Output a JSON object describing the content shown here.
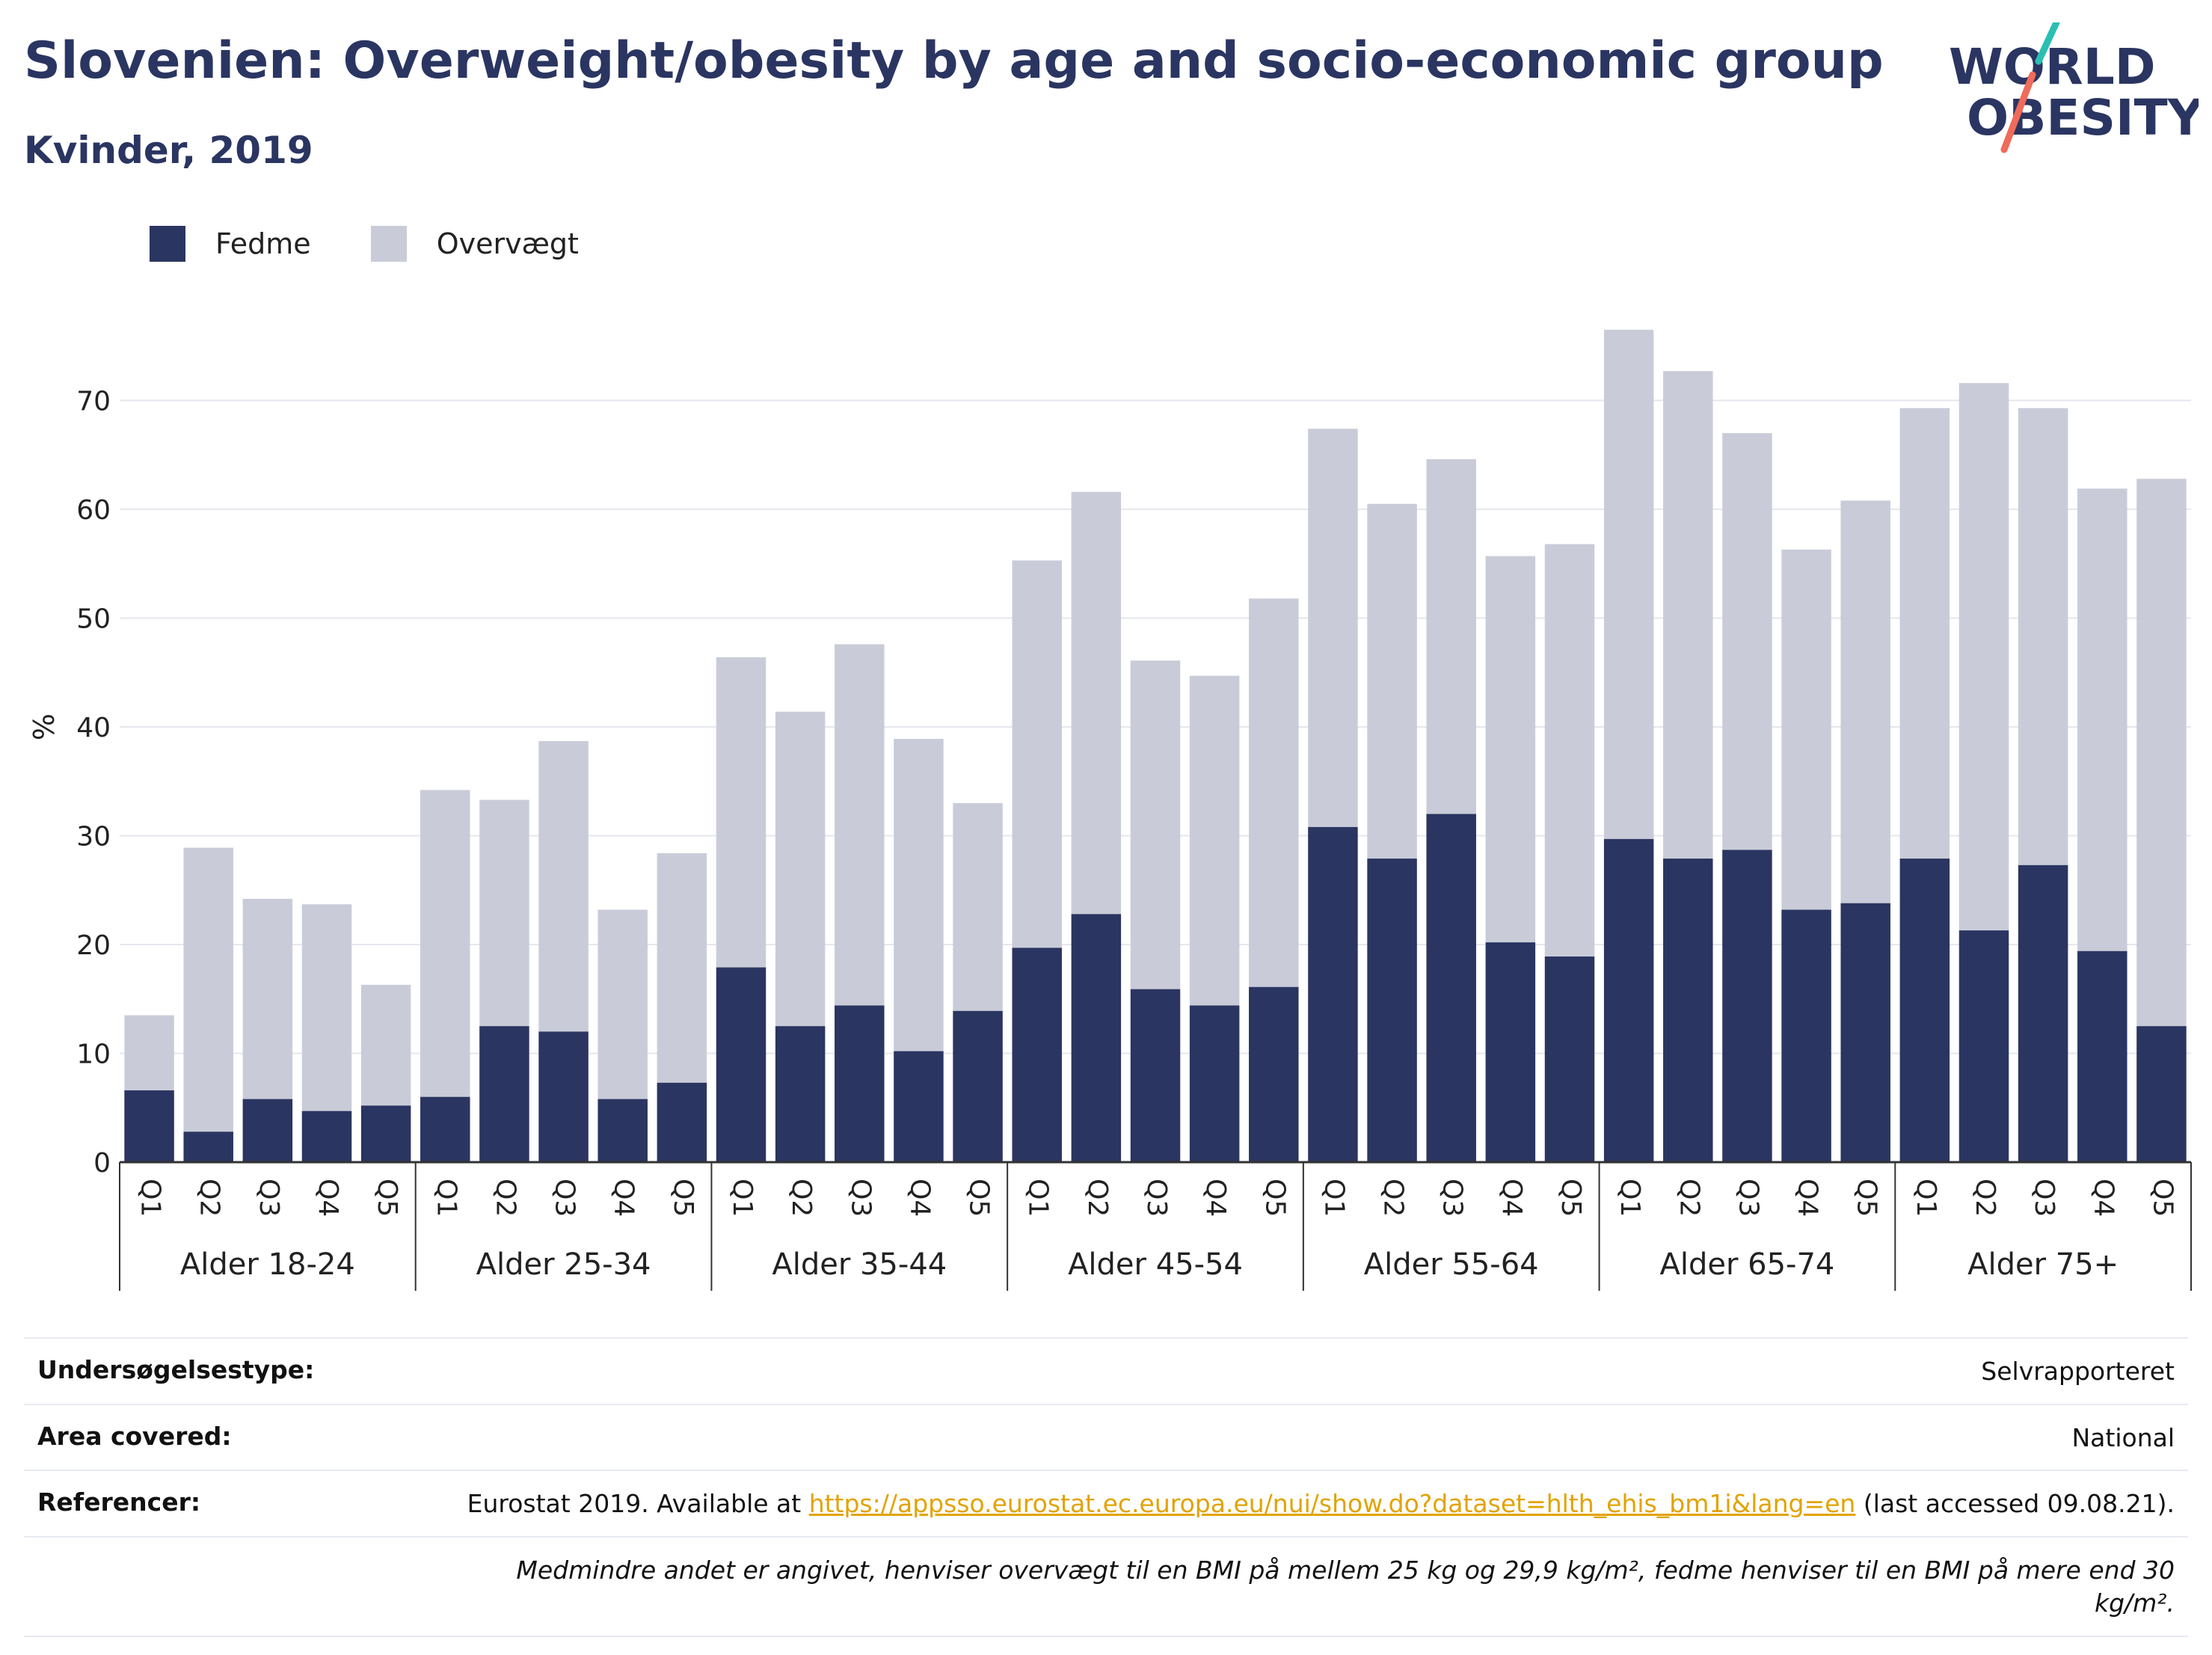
{
  "header": {
    "title": "Slovenien: Overweight/obesity by age and socio-economic group",
    "subtitle": "Kvinder, 2019"
  },
  "logo": {
    "line1": "WORLD",
    "line2": "OBESITY",
    "colors": {
      "text": "#2a3561",
      "accent_teal": "#2bbfb3",
      "accent_coral": "#ef6b5a"
    }
  },
  "legend": [
    {
      "label": "Fedme",
      "color": "#2a3561"
    },
    {
      "label": "Overvægt",
      "color": "#c9ccd8"
    }
  ],
  "chart_data": {
    "type": "bar",
    "stacked": true,
    "title": "Slovenien: Overweight/obesity by age and socio-economic group",
    "subtitle": "Kvinder, 2019",
    "ylabel": "%",
    "ylim": [
      0,
      80
    ],
    "yticks": [
      0,
      10,
      20,
      30,
      40,
      50,
      60,
      70
    ],
    "grid": true,
    "legend_position": "top-left",
    "groups": [
      "Alder 18-24",
      "Alder 25-34",
      "Alder 35-44",
      "Alder 45-54",
      "Alder 55-64",
      "Alder 65-74",
      "Alder 75+"
    ],
    "categories": [
      "Q1",
      "Q2",
      "Q3",
      "Q4",
      "Q5"
    ],
    "series": [
      {
        "name": "Fedme",
        "color": "#2a3561",
        "values": [
          [
            6.6,
            2.8,
            5.8,
            4.7,
            5.2
          ],
          [
            6.0,
            12.5,
            12.0,
            5.8,
            7.3
          ],
          [
            17.9,
            12.5,
            14.4,
            10.2,
            13.9
          ],
          [
            19.7,
            22.8,
            15.9,
            14.4,
            16.1
          ],
          [
            30.8,
            27.9,
            32.0,
            20.2,
            18.9
          ],
          [
            29.7,
            27.9,
            28.7,
            23.2,
            23.8
          ],
          [
            27.9,
            21.3,
            27.3,
            19.4,
            12.5
          ]
        ]
      },
      {
        "name": "Overvægt",
        "color": "#c9ccd8",
        "values": [
          [
            6.9,
            26.1,
            18.4,
            19.0,
            11.1
          ],
          [
            28.2,
            20.8,
            26.7,
            17.4,
            21.1
          ],
          [
            28.5,
            28.9,
            33.2,
            28.7,
            19.1
          ],
          [
            35.6,
            38.8,
            30.2,
            30.3,
            35.7
          ],
          [
            36.6,
            32.6,
            32.6,
            35.5,
            37.9
          ],
          [
            46.8,
            44.8,
            38.3,
            33.1,
            37.0
          ],
          [
            41.4,
            50.3,
            42.0,
            42.5,
            50.3
          ]
        ]
      }
    ]
  },
  "info": {
    "survey_type_label": "Undersøgelsestype:",
    "survey_type_value": "Selvrapporteret",
    "area_label": "Area covered:",
    "area_value": "National",
    "references_label": "Referencer:",
    "references_prefix": "Eurostat 2019. Available at ",
    "references_link": "https://appsso.eurostat.ec.europa.eu/nui/show.do?dataset=hlth_ehis_bm1i&lang=en",
    "references_suffix": " (last accessed 09.08.21).",
    "note": "Medmindre andet er angivet, henviser overvægt til en BMI på mellem 25 kg og 29,9 kg/m², fedme henviser til en BMI på mere end 30 kg/m²."
  }
}
